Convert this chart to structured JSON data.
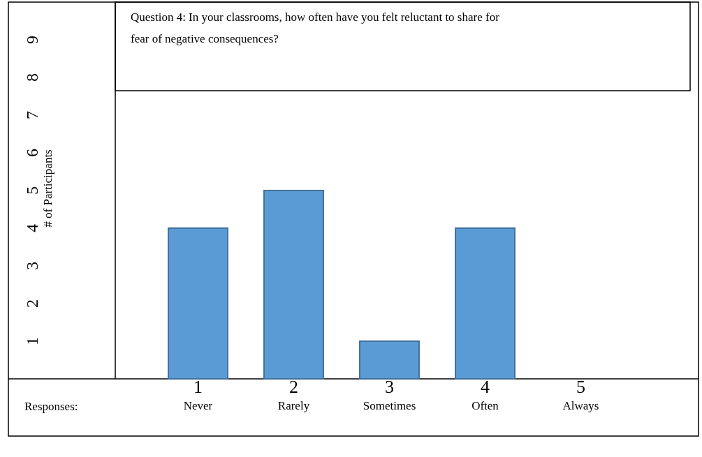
{
  "chart_data": {
    "type": "bar",
    "title": "Question 4: In your classrooms, how often have you felt reluctant to share for fear of negative consequences?",
    "ylabel": "# of Participants",
    "xlabel": "Responses:",
    "categories": [
      "1\nNever",
      "2\nRarely",
      "3\nSometimes",
      "4\nOften",
      "5\nAlways"
    ],
    "values": [
      4,
      5,
      1,
      4,
      0
    ],
    "color": "#5b9bd5",
    "ylim": [
      0,
      10
    ],
    "yticks": [
      1,
      2,
      3,
      4,
      5,
      6,
      7,
      8,
      9
    ],
    "grid": false
  }
}
